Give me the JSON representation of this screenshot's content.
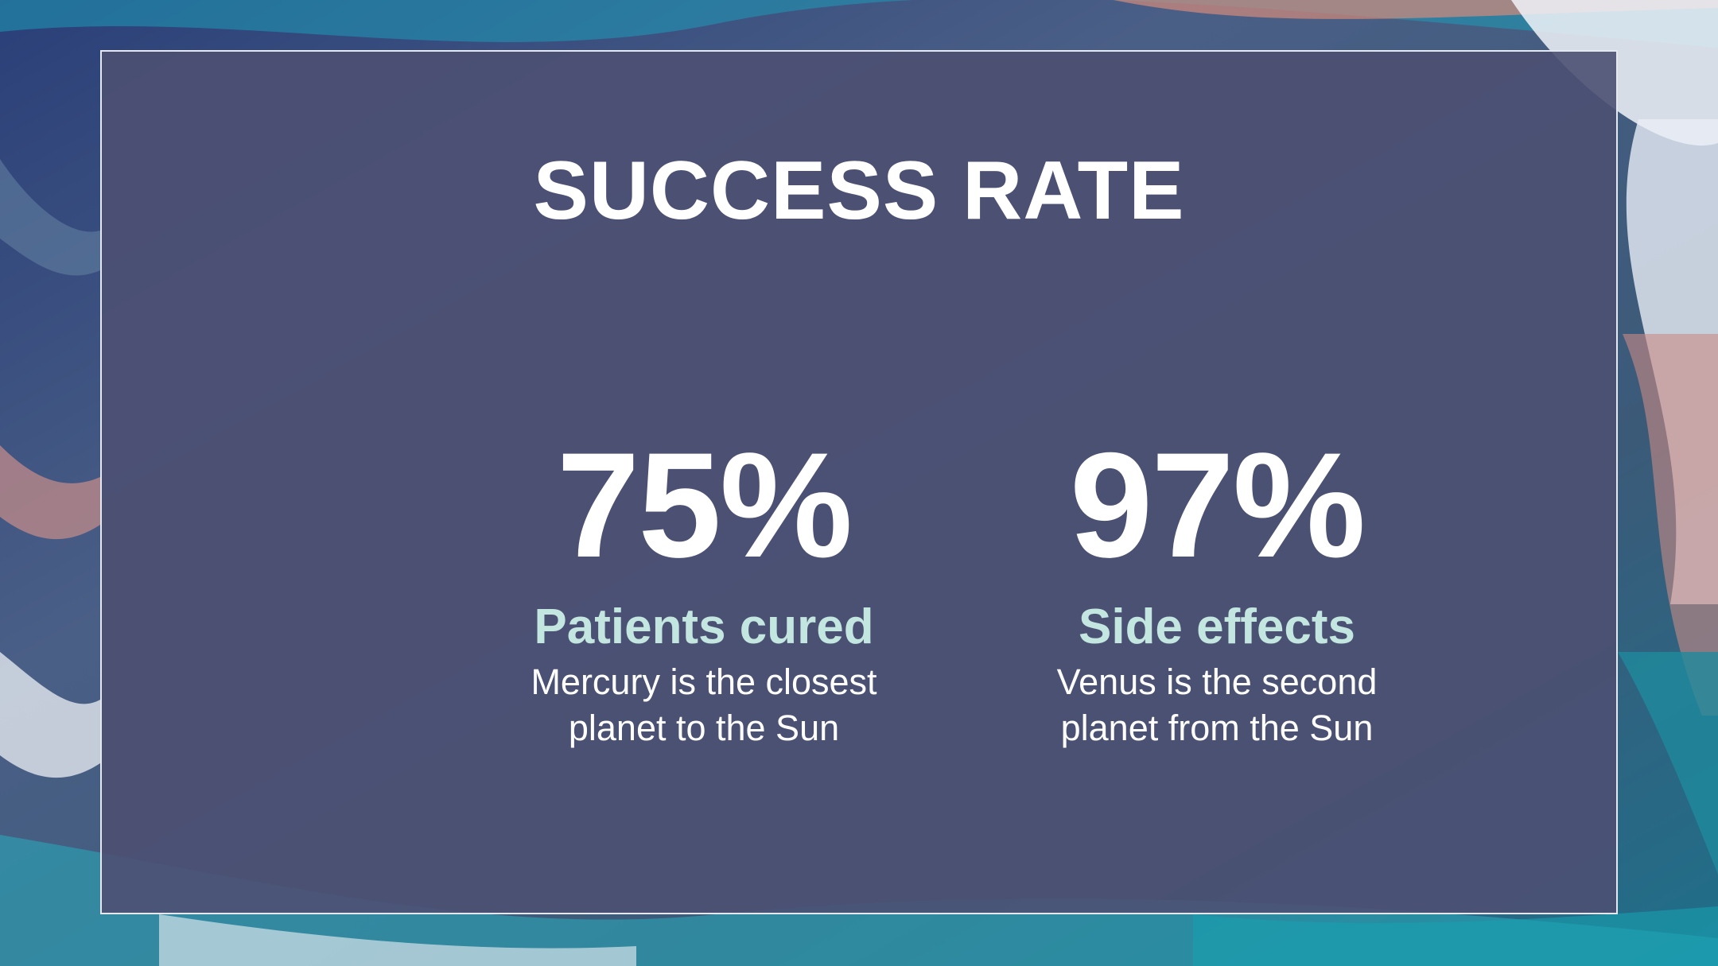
{
  "slide": {
    "title": "SUCCESS RATE",
    "stats": [
      {
        "value": "75%",
        "label": "Patients cured",
        "description_line1": "Mercury is the closest",
        "description_line2": "planet to the Sun"
      },
      {
        "value": "97%",
        "label": "Side effects",
        "description_line1": "Venus is the second",
        "description_line2": "planet from the Sun"
      }
    ]
  },
  "colors": {
    "panel": "#4c5072",
    "panel_border": "#e6e8f0",
    "title": "#ffffff",
    "label_accent": "#c4e6e0",
    "text": "#ffffff"
  }
}
